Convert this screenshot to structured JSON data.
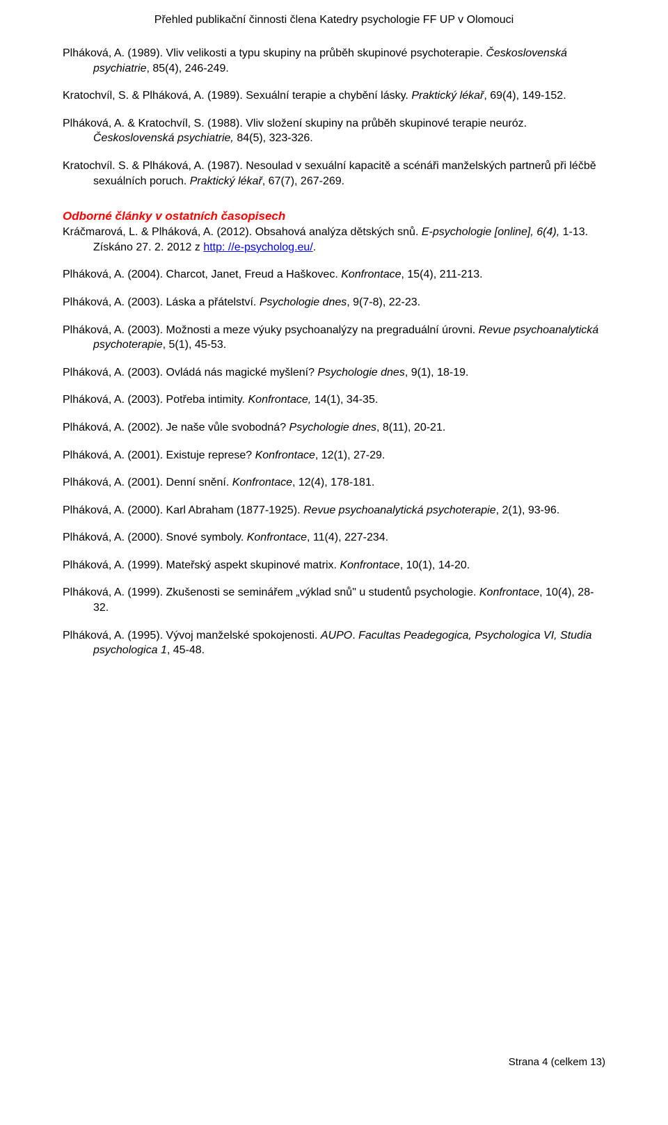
{
  "header": "Přehled publikační činnosti člena Katedry psychologie FF UP v Olomouci",
  "entries_before": [
    {
      "prefix": "Plháková, A. (1989). Vliv velikosti a typu skupiny na průběh skupinové psychoterapie. ",
      "italic": "Československá psychiatrie",
      "suffix": ", 85(4), 246-249."
    },
    {
      "prefix": "Kratochvíl, S. & Plháková, A. (1989). Sexuální terapie a chybění lásky. ",
      "italic": "Praktický lékař",
      "suffix": ", 69(4), 149-152."
    },
    {
      "prefix": "Plháková, A. & Kratochvíl, S. (1988). Vliv složení skupiny na průběh skupinové terapie neuróz. ",
      "italic": "Československá psychiatrie,",
      "suffix": " 84(5), 323-326."
    },
    {
      "prefix": "Kratochvíl. S. & Plháková, A. (1987). Nesoulad v sexuální kapacitě a scénáři manželských partnerů při léčbě sexuálních poruch. ",
      "italic": "Praktický lékař",
      "suffix": ", 67(7), 267-269."
    }
  ],
  "section_heading": "Odborné články v ostatních časopisech",
  "special_entry": {
    "prefix": "Kráčmarová, L. & Plháková, A. (2012). Obsahová analýza dětských snů. ",
    "italic": "E-psychologie [online], 6(4),",
    "mid": " 1-13. Získáno 27. 2. 2012 z ",
    "link": "http: //e-psycholog.eu/",
    "suffix2": "."
  },
  "entries_after": [
    {
      "prefix": "Plháková, A. (2004). Charcot, Janet, Freud a Haškovec. ",
      "italic": "Konfrontace",
      "suffix": ", 15(4), 211-213."
    },
    {
      "prefix": "Plháková, A. (2003). Láska a přátelství. ",
      "italic": "Psychologie dnes",
      "suffix": ", 9(7-8), 22-23."
    },
    {
      "prefix": "Plháková, A. (2003). Možnosti a meze výuky psychoanalýzy na pregraduální úrovni. ",
      "italic": "Revue psychoanalytická psychoterapie",
      "suffix": ", 5(1), 45-53."
    },
    {
      "prefix": "Plháková, A. (2003). Ovládá nás magické myšlení? ",
      "italic": "Psychologie dnes",
      "suffix": ", 9(1), 18-19."
    },
    {
      "prefix": "Plháková, A. (2003). Potřeba intimity. ",
      "italic": "Konfrontace,",
      "suffix": " 14(1), 34-35."
    },
    {
      "prefix": "Plháková, A. (2002). Je naše vůle svobodná? ",
      "italic": "Psychologie dnes",
      "suffix": ", 8(11), 20-21."
    },
    {
      "prefix": "Plháková, A. (2001). Existuje represe? ",
      "italic": "Konfrontace",
      "suffix": ", 12(1), 27-29."
    },
    {
      "prefix": "Plháková, A. (2001). Denní snění. ",
      "italic": "Konfrontace",
      "suffix": ", 12(4), 178-181."
    },
    {
      "prefix": "Plháková, A. (2000). Karl Abraham (1877-1925). ",
      "italic": "Revue psychoanalytická psychoterapie",
      "suffix": ", 2(1), 93-96."
    },
    {
      "prefix": "Plháková, A. (2000). Snové symboly. ",
      "italic": "Konfrontace",
      "suffix": ", 11(4), 227-234."
    },
    {
      "prefix": "Plháková, A. (1999). Mateřský aspekt skupinové matrix. ",
      "italic": "Konfrontace",
      "suffix": ", 10(1), 14-20."
    },
    {
      "prefix": "Plháková, A. (1999). Zkušenosti se seminářem „výklad snů\" u studentů psychologie. ",
      "italic": "Konfrontace",
      "suffix": ", 10(4), 28-32."
    }
  ],
  "last_entry": {
    "prefix": "Plháková, A. (1995). Vývoj manželské spokojenosti. ",
    "italic1": "AUPO",
    "mid": ". ",
    "italic2": "Facultas Peadegogica, Psychologica  VI, Studia psychologica 1",
    "suffix": ", 45-48."
  },
  "footer": "Strana 4 (celkem 13)"
}
